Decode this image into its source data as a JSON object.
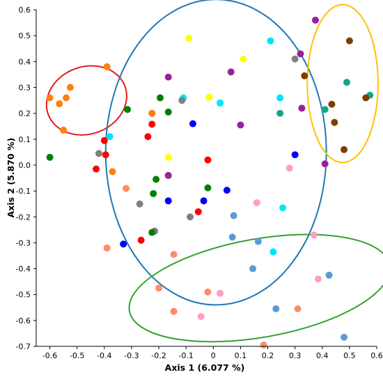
{
  "chart_data": {
    "type": "scatter",
    "xlabel": "Axis 1 (6.077 %)",
    "ylabel": "Axis 2 (5.870 %)",
    "xlim": [
      -0.65,
      0.6
    ],
    "ylim": [
      -0.7,
      0.6
    ],
    "xticks": [
      "-0.6",
      "-0.5",
      "-0.4",
      "-0.3",
      "-0.2",
      "-0.1",
      "0",
      "0.1",
      "0.2",
      "0.3",
      "0.4",
      "0.5",
      "0.6"
    ],
    "yticks": [
      "-0.7",
      "-0.6",
      "-0.5",
      "-0.4",
      "-0.3",
      "-0.2",
      "-0.1",
      "0.0",
      "0.1",
      "0.2",
      "0.3",
      "0.4",
      "0.5",
      "0.6"
    ],
    "grid": false,
    "series": [
      {
        "color": "#ff7f0e",
        "points": [
          [
            -0.6,
            0.26
          ],
          [
            -0.565,
            0.237
          ],
          [
            -0.54,
            0.26
          ],
          [
            -0.525,
            0.3
          ],
          [
            -0.55,
            0.135
          ],
          [
            -0.39,
            0.38
          ],
          [
            -0.37,
            -0.025
          ],
          [
            -0.225,
            0.2
          ]
        ]
      },
      {
        "color": "#ff8c69",
        "points": [
          [
            -0.32,
            -0.09
          ],
          [
            -0.39,
            -0.32
          ],
          [
            -0.145,
            -0.345
          ],
          [
            -0.2,
            -0.475
          ],
          [
            -0.145,
            -0.565
          ],
          [
            -0.02,
            -0.49
          ],
          [
            0.185,
            -0.695
          ],
          [
            0.31,
            -0.555
          ]
        ]
      },
      {
        "color": "#ff9cc8",
        "points": [
          [
            0.16,
            -0.145
          ],
          [
            0.28,
            -0.012
          ],
          [
            0.37,
            -0.27
          ],
          [
            0.385,
            -0.44
          ],
          [
            0.025,
            -0.495
          ],
          [
            -0.045,
            -0.585
          ]
        ]
      },
      {
        "color": "#5b9bd5",
        "points": [
          [
            0.075,
            -0.195
          ],
          [
            0.07,
            -0.278
          ],
          [
            0.165,
            -0.295
          ],
          [
            0.145,
            -0.4
          ],
          [
            0.23,
            -0.555
          ],
          [
            0.425,
            -0.425
          ],
          [
            0.48,
            -0.665
          ]
        ]
      },
      {
        "color": "#00e5ff",
        "points": [
          [
            -0.38,
            0.11
          ],
          [
            -0.11,
            0.26
          ],
          [
            0.025,
            0.24
          ],
          [
            0.21,
            0.48
          ],
          [
            0.245,
            0.26
          ],
          [
            0.255,
            -0.165
          ],
          [
            0.22,
            -0.335
          ]
        ]
      },
      {
        "color": "#ffff00",
        "points": [
          [
            -0.09,
            0.49
          ],
          [
            0.11,
            0.41
          ],
          [
            -0.015,
            0.262
          ],
          [
            -0.165,
            0.03
          ]
        ]
      },
      {
        "color": "#17a589",
        "points": [
          [
            0.245,
            0.2
          ],
          [
            0.49,
            0.32
          ],
          [
            0.575,
            0.27
          ],
          [
            0.41,
            0.215
          ]
        ]
      },
      {
        "color": "#9b1f9b",
        "points": [
          [
            0.375,
            0.56
          ],
          [
            0.32,
            0.43
          ],
          [
            0.065,
            0.36
          ],
          [
            -0.165,
            0.34
          ],
          [
            0.1,
            0.155
          ],
          [
            -0.165,
            -0.04
          ],
          [
            0.41,
            0.005
          ],
          [
            0.325,
            0.22
          ]
        ]
      },
      {
        "color": "#7b3f00",
        "points": [
          [
            0.5,
            0.48
          ],
          [
            0.335,
            0.345
          ],
          [
            0.435,
            0.235
          ],
          [
            0.445,
            0.165
          ],
          [
            0.48,
            0.06
          ],
          [
            0.56,
            0.26
          ]
        ]
      },
      {
        "color": "#808080",
        "points": [
          [
            0.3,
            0.41
          ],
          [
            -0.115,
            0.25
          ],
          [
            -0.42,
            0.045
          ],
          [
            -0.27,
            -0.15
          ],
          [
            -0.215,
            -0.255
          ],
          [
            -0.085,
            -0.2
          ]
        ]
      },
      {
        "color": "#008000",
        "points": [
          [
            -0.6,
            0.03
          ],
          [
            -0.315,
            0.215
          ],
          [
            -0.195,
            0.26
          ],
          [
            -0.165,
            0.205
          ],
          [
            -0.21,
            -0.055
          ],
          [
            -0.22,
            -0.11
          ],
          [
            -0.02,
            -0.088
          ],
          [
            -0.225,
            -0.26
          ]
        ]
      },
      {
        "color": "#ff0000",
        "points": [
          [
            -0.4,
            0.095
          ],
          [
            -0.395,
            0.04
          ],
          [
            -0.43,
            -0.015
          ],
          [
            -0.225,
            0.158
          ],
          [
            -0.24,
            0.11
          ],
          [
            -0.02,
            0.02
          ],
          [
            -0.055,
            -0.18
          ],
          [
            -0.265,
            -0.29
          ]
        ]
      },
      {
        "color": "#0000ff",
        "points": [
          [
            -0.075,
            0.16
          ],
          [
            0.3,
            0.04
          ],
          [
            -0.165,
            -0.138
          ],
          [
            -0.035,
            -0.138
          ],
          [
            0.05,
            -0.097
          ],
          [
            -0.33,
            -0.305
          ]
        ]
      }
    ],
    "ellipses": [
      {
        "color": "#e31a1c",
        "cx": -0.465,
        "cy": 0.25,
        "rx": 0.15,
        "ry": 0.13,
        "angle_deg": -20
      },
      {
        "color": "#1f78b4",
        "cx": 0.01,
        "cy": 0.05,
        "rx": 0.405,
        "ry": 0.59,
        "angle_deg": 0
      },
      {
        "color": "#ffc000",
        "cx": 0.475,
        "cy": 0.315,
        "rx": 0.13,
        "ry": 0.305,
        "angle_deg": 0
      },
      {
        "color": "#33a02c",
        "cx": 0.17,
        "cy": -0.475,
        "rx": 0.485,
        "ry": 0.19,
        "angle_deg": -10
      }
    ]
  }
}
